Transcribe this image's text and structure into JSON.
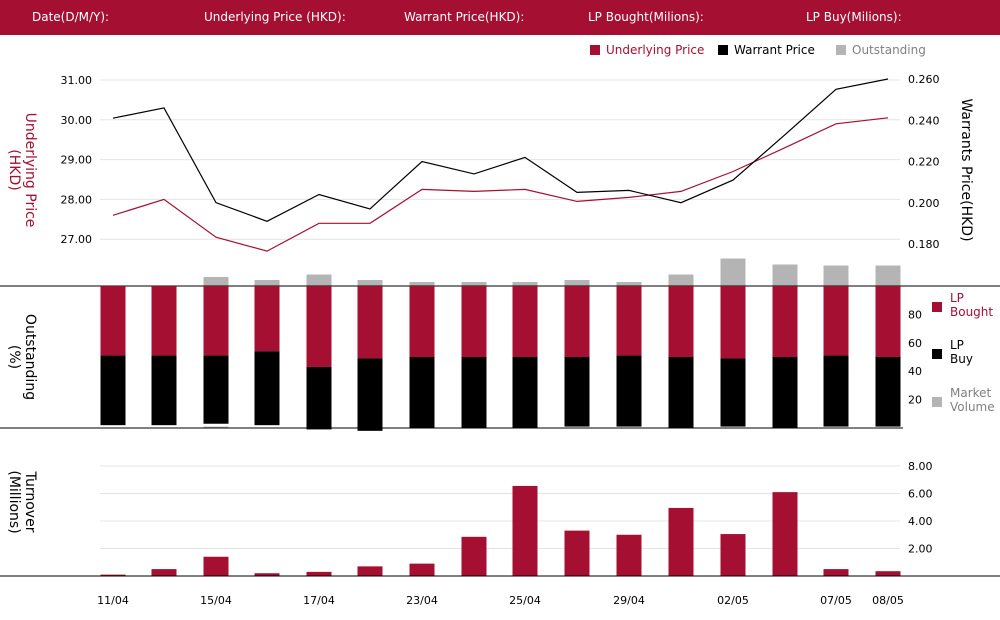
{
  "header": {
    "date_label": "Date(D/M/Y):",
    "underlying_label": "Underlying Price (HKD):",
    "warrant_label": "Warrant  Price(HKD):",
    "lp_bought_label": "LP Bought(Milions):",
    "lp_buy_label": "LP Buy(Milions):"
  },
  "colors": {
    "accent": "#a50f32",
    "black": "#000000",
    "gray": "#b4b4b4",
    "grid": "#e4e4e4"
  },
  "chart_data": [
    {
      "type": "line",
      "categories": [
        "11/04",
        "",
        "15/04",
        "",
        "17/04",
        "",
        "23/04",
        "",
        "25/04",
        "",
        "29/04",
        "",
        "02/05",
        "",
        "07/05",
        "08/05"
      ],
      "series": [
        {
          "name": "Underlying Price",
          "axis": "left",
          "color": "#a50f32",
          "values": [
            27.6,
            28.0,
            27.05,
            26.7,
            27.4,
            27.4,
            28.25,
            28.2,
            28.25,
            27.95,
            28.05,
            28.2,
            28.7,
            29.3,
            29.9,
            30.05
          ]
        },
        {
          "name": "Warrant  Price",
          "axis": "right",
          "color": "#000000",
          "values": [
            0.241,
            0.246,
            0.2,
            0.191,
            0.204,
            0.197,
            0.22,
            0.214,
            0.222,
            0.205,
            0.206,
            0.2,
            0.211,
            0.233,
            0.255,
            0.26
          ]
        },
        {
          "name": "Outstanding",
          "axis": "overlay",
          "color": "#b4b4b4",
          "values": [
            0,
            0,
            18,
            12,
            23,
            12,
            8,
            8,
            8,
            12,
            8,
            23,
            55,
            43,
            41,
            41
          ]
        }
      ],
      "ylabel": "Underlying Price\n(HKD)",
      "ylabel_right": "Warrants  Price(HKD)",
      "yticks_left": [
        "31.00",
        "30.00",
        "29.00",
        "28.00",
        "27.00"
      ],
      "ylim_left": [
        26.0,
        31.0
      ],
      "yticks_right": [
        "0.260",
        "0.240",
        "0.220",
        "0.200",
        "0.180"
      ],
      "ylim_right": [
        0.16,
        0.26
      ],
      "grid": true,
      "legend": "top-right"
    },
    {
      "type": "bar",
      "stacked": true,
      "categories": [
        "11/04",
        "",
        "15/04",
        "",
        "17/04",
        "",
        "23/04",
        "",
        "25/04",
        "",
        "29/04",
        "",
        "02/05",
        "",
        "07/05",
        "08/05"
      ],
      "series": [
        {
          "name": "LP\nBought",
          "color": "#a50f32",
          "values": [
            49,
            49,
            49,
            46,
            57,
            51,
            50,
            50,
            50,
            50,
            49,
            50,
            51,
            50,
            49,
            50
          ]
        },
        {
          "name": "LP\nBuy",
          "color": "#000000",
          "values": [
            49,
            49,
            48,
            52,
            44,
            51,
            50,
            50,
            50,
            49,
            50,
            50,
            48,
            50,
            50,
            49
          ]
        },
        {
          "name": "Market\nVolume",
          "color": "#b4b4b4",
          "values": [
            0,
            0,
            1,
            0,
            0,
            0,
            0,
            0,
            0,
            0,
            0,
            0,
            0,
            0,
            0,
            0
          ]
        }
      ],
      "ylabel": "Outstanding\n(%)",
      "yticks": [
        "80",
        "60",
        "40",
        "20"
      ],
      "ylim": [
        0,
        100
      ],
      "legend": "right"
    },
    {
      "type": "bar",
      "categories": [
        "11/04",
        "",
        "15/04",
        "",
        "17/04",
        "",
        "23/04",
        "",
        "25/04",
        "",
        "29/04",
        "",
        "02/05",
        "",
        "07/05",
        "08/05"
      ],
      "values": [
        0.1,
        0.5,
        1.4,
        0.2,
        0.3,
        0.7,
        0.9,
        2.85,
        6.55,
        3.3,
        3.0,
        4.95,
        3.05,
        6.1,
        0.5,
        0.35
      ],
      "ylabel": "Turnover\n(Millions)",
      "yticks": [
        "8.00",
        "6.00",
        "4.00",
        "2.00"
      ],
      "ylim": [
        0,
        8.8
      ],
      "grid": true
    }
  ]
}
